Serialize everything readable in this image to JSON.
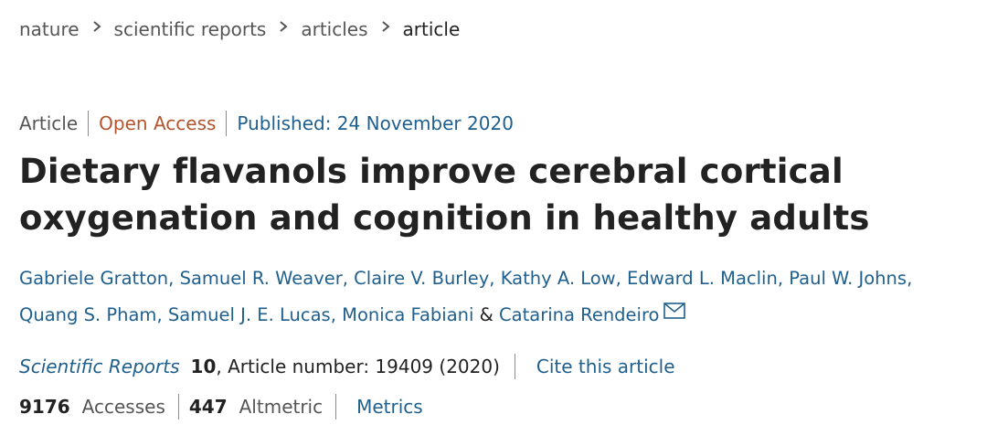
{
  "breadcrumb": {
    "items": [
      "nature",
      "scientific reports",
      "articles",
      "article"
    ]
  },
  "meta": {
    "type": "Article",
    "access": "Open Access",
    "published": "Published: 24 November 2020"
  },
  "article": {
    "title": "Dietary flavanols improve cerebral cortical oxygenation and cognition in healthy adults"
  },
  "authors": {
    "list": [
      "Gabriele Gratton",
      "Samuel R. Weaver",
      "Claire V. Burley",
      "Kathy A. Low",
      "Edward L. Maclin",
      "Paul W. Johns",
      "Quang S. Pham",
      "Samuel J. E. Lucas",
      "Monica Fabiani",
      "Catarina Rendeiro"
    ],
    "separator": ", ",
    "last_separator": " & ",
    "corresponding_icon": "mail-icon"
  },
  "citation": {
    "journal": "Scientific Reports",
    "volume": "10",
    "article_info": ", Article number: 19409 (2020)",
    "cite_label": "Cite this article"
  },
  "metrics": {
    "accesses_count": "9176",
    "accesses_label": "Accesses",
    "altmetric_count": "447",
    "altmetric_label": "Altmetric",
    "metrics_link": "Metrics"
  },
  "colors": {
    "link": "#1f5f8e",
    "open_access": "#b3542e",
    "text": "#222222",
    "muted": "#555555"
  }
}
